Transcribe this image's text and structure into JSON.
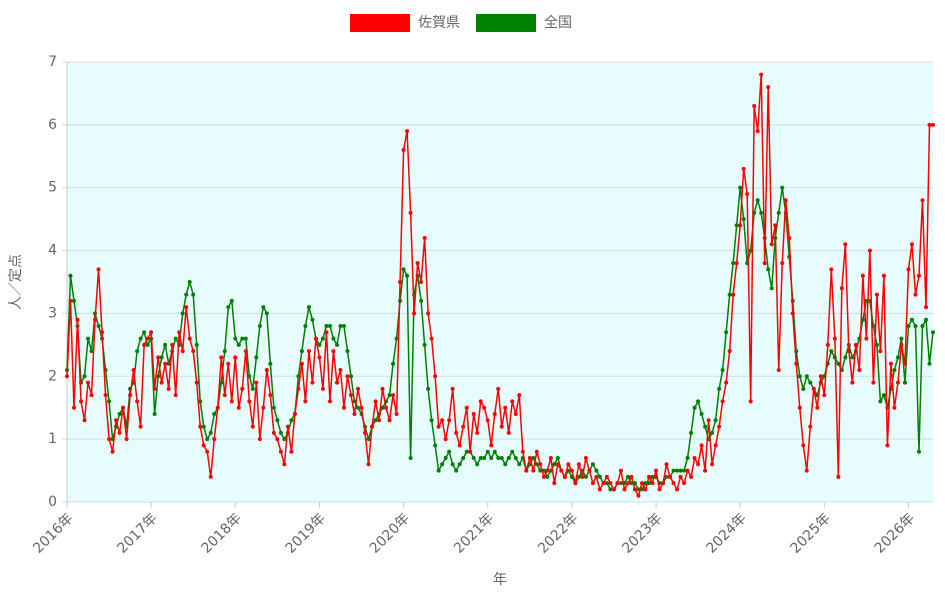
{
  "chart_data": {
    "type": "line",
    "x_label": "年",
    "y_label": "人／定点",
    "categories": [
      "2016年",
      null,
      null,
      null,
      null,
      null,
      null,
      null,
      null,
      null,
      null,
      null,
      null,
      null,
      null,
      null,
      null,
      null,
      null,
      null,
      null,
      null,
      null,
      null,
      "2017年",
      null,
      null,
      null,
      null,
      null,
      null,
      null,
      null,
      null,
      null,
      null,
      null,
      null,
      null,
      null,
      null,
      null,
      null,
      null,
      null,
      null,
      null,
      null,
      "2018年",
      null,
      null,
      null,
      null,
      null,
      null,
      null,
      null,
      null,
      null,
      null,
      null,
      null,
      null,
      null,
      null,
      null,
      null,
      null,
      null,
      null,
      null,
      null,
      "2019年",
      null,
      null,
      null,
      null,
      null,
      null,
      null,
      null,
      null,
      null,
      null,
      null,
      null,
      null,
      null,
      null,
      null,
      null,
      null,
      null,
      null,
      null,
      null,
      "2020年",
      null,
      null,
      null,
      null,
      null,
      null,
      null,
      null,
      null,
      null,
      null,
      null,
      null,
      null,
      null,
      null,
      null,
      null,
      null,
      null,
      null,
      null,
      null,
      "2021年",
      null,
      null,
      null,
      null,
      null,
      null,
      null,
      null,
      null,
      null,
      null,
      null,
      null,
      null,
      null,
      null,
      null,
      null,
      null,
      null,
      null,
      null,
      null,
      "2022年",
      null,
      null,
      null,
      null,
      null,
      null,
      null,
      null,
      null,
      null,
      null,
      null,
      null,
      null,
      null,
      null,
      null,
      null,
      null,
      null,
      null,
      null,
      null,
      "2023年",
      null,
      null,
      null,
      null,
      null,
      null,
      null,
      null,
      null,
      null,
      null,
      null,
      null,
      null,
      null,
      null,
      null,
      null,
      null,
      null,
      null,
      null,
      null,
      "2024年",
      null,
      null,
      null,
      null,
      null,
      null,
      null,
      null,
      null,
      null,
      null,
      null,
      null,
      null,
      null,
      null,
      null,
      null,
      null,
      null,
      null,
      null,
      null,
      "2025年",
      null,
      null,
      null,
      null,
      null,
      null,
      null,
      null,
      null,
      null,
      null,
      null,
      null,
      null,
      null,
      null,
      null,
      null,
      null,
      null,
      null,
      null,
      null,
      "2026年",
      null,
      null,
      null,
      null,
      null,
      null,
      null
    ],
    "series": [
      {
        "name": "佐賀県",
        "color": "#ff0000",
        "values": [
          2.0,
          3.2,
          1.5,
          2.9,
          1.6,
          1.3,
          1.9,
          1.7,
          2.9,
          3.7,
          2.7,
          1.7,
          1.0,
          0.8,
          1.3,
          1.1,
          1.5,
          1.0,
          1.7,
          2.1,
          1.6,
          1.2,
          2.5,
          2.6,
          2.7,
          1.8,
          2.3,
          1.9,
          2.2,
          1.8,
          2.5,
          1.7,
          2.7,
          2.4,
          3.1,
          2.6,
          2.4,
          1.9,
          1.2,
          0.9,
          0.8,
          0.4,
          1.0,
          1.5,
          2.3,
          1.7,
          2.2,
          1.6,
          2.3,
          1.5,
          1.8,
          2.4,
          1.6,
          1.2,
          1.9,
          1.0,
          1.5,
          2.1,
          1.7,
          1.1,
          1.0,
          0.8,
          0.6,
          1.2,
          0.8,
          1.4,
          1.8,
          2.2,
          1.6,
          2.4,
          1.9,
          2.6,
          2.3,
          1.8,
          2.7,
          1.6,
          2.4,
          1.9,
          2.1,
          1.5,
          2.0,
          1.7,
          1.4,
          1.8,
          1.5,
          1.1,
          0.6,
          1.2,
          1.6,
          1.3,
          1.8,
          1.5,
          1.3,
          1.7,
          1.4,
          3.5,
          5.6,
          5.9,
          4.6,
          3.0,
          3.8,
          3.5,
          4.2,
          3.0,
          2.6,
          2.0,
          1.2,
          1.3,
          1.0,
          1.3,
          1.8,
          1.1,
          0.9,
          1.2,
          1.5,
          0.8,
          1.4,
          1.1,
          1.6,
          1.5,
          1.3,
          0.9,
          1.4,
          1.8,
          1.2,
          1.5,
          1.1,
          1.6,
          1.4,
          1.7,
          0.8,
          0.5,
          0.7,
          0.5,
          0.8,
          0.6,
          0.4,
          0.5,
          0.7,
          0.3,
          0.6,
          0.5,
          0.4,
          0.6,
          0.5,
          0.3,
          0.6,
          0.4,
          0.7,
          0.5,
          0.3,
          0.4,
          0.2,
          0.3,
          0.4,
          0.3,
          0.2,
          0.3,
          0.5,
          0.2,
          0.3,
          0.4,
          0.2,
          0.1,
          0.3,
          0.2,
          0.4,
          0.3,
          0.5,
          0.2,
          0.3,
          0.6,
          0.4,
          0.3,
          0.2,
          0.4,
          0.3,
          0.5,
          0.4,
          0.7,
          0.6,
          0.9,
          0.5,
          1.3,
          0.6,
          0.9,
          1.2,
          1.6,
          1.9,
          2.4,
          3.3,
          3.8,
          4.4,
          5.3,
          4.9,
          1.6,
          6.3,
          5.9,
          6.8,
          3.8,
          6.6,
          4.1,
          4.4,
          2.1,
          3.8,
          4.8,
          4.2,
          3.0,
          2.2,
          1.5,
          0.9,
          0.5,
          1.2,
          1.8,
          1.5,
          2.0,
          1.7,
          2.5,
          3.7,
          2.6,
          0.4,
          3.4,
          4.1,
          2.4,
          1.9,
          2.5,
          2.1,
          3.6,
          2.6,
          4.0,
          1.9,
          3.3,
          2.4,
          3.6,
          0.9,
          2.2,
          1.5,
          1.9,
          2.5,
          2.2,
          3.7,
          4.1,
          3.3,
          3.6,
          4.8,
          3.1,
          6.0,
          6.0
        ]
      },
      {
        "name": "全国",
        "color": "#008000",
        "values": [
          2.1,
          3.6,
          3.2,
          2.8,
          1.9,
          2.0,
          2.6,
          2.4,
          3.0,
          2.8,
          2.6,
          2.1,
          1.6,
          1.0,
          1.2,
          1.4,
          1.5,
          1.2,
          1.8,
          1.9,
          2.4,
          2.6,
          2.7,
          2.5,
          2.6,
          1.4,
          2.0,
          2.3,
          2.5,
          2.2,
          2.4,
          2.6,
          2.5,
          3.0,
          3.3,
          3.5,
          3.3,
          2.5,
          1.6,
          1.2,
          1.0,
          1.1,
          1.4,
          1.5,
          1.9,
          2.4,
          3.1,
          3.2,
          2.6,
          2.5,
          2.6,
          2.6,
          2.0,
          1.8,
          2.3,
          2.8,
          3.1,
          3.0,
          2.2,
          1.5,
          1.3,
          1.1,
          1.0,
          1.1,
          1.3,
          1.4,
          2.0,
          2.4,
          2.8,
          3.1,
          2.9,
          2.6,
          2.5,
          2.6,
          2.8,
          2.8,
          2.6,
          2.5,
          2.8,
          2.8,
          2.4,
          2.0,
          1.6,
          1.5,
          1.4,
          1.2,
          1.0,
          1.2,
          1.3,
          1.4,
          1.5,
          1.6,
          1.7,
          2.2,
          2.6,
          3.2,
          3.7,
          3.6,
          0.7,
          3.3,
          3.6,
          3.2,
          2.5,
          1.8,
          1.3,
          0.9,
          0.5,
          0.6,
          0.7,
          0.8,
          0.6,
          0.5,
          0.6,
          0.7,
          0.8,
          0.8,
          0.7,
          0.6,
          0.7,
          0.7,
          0.8,
          0.7,
          0.8,
          0.7,
          0.7,
          0.6,
          0.7,
          0.8,
          0.7,
          0.6,
          0.7,
          0.5,
          0.6,
          0.7,
          0.6,
          0.5,
          0.5,
          0.4,
          0.5,
          0.6,
          0.7,
          0.5,
          0.4,
          0.5,
          0.4,
          0.3,
          0.4,
          0.5,
          0.4,
          0.5,
          0.6,
          0.5,
          0.4,
          0.3,
          0.3,
          0.2,
          0.2,
          0.3,
          0.3,
          0.3,
          0.4,
          0.3,
          0.3,
          0.2,
          0.2,
          0.3,
          0.3,
          0.4,
          0.4,
          0.3,
          0.3,
          0.4,
          0.4,
          0.5,
          0.5,
          0.5,
          0.5,
          0.7,
          1.1,
          1.5,
          1.6,
          1.4,
          1.2,
          1.0,
          1.1,
          1.3,
          1.8,
          2.1,
          2.7,
          3.3,
          3.8,
          4.4,
          5.0,
          4.5,
          3.8,
          4.0,
          4.6,
          4.8,
          4.6,
          4.2,
          3.7,
          3.4,
          4.2,
          4.6,
          5.0,
          4.6,
          3.9,
          3.2,
          2.4,
          2.0,
          1.8,
          2.0,
          1.9,
          1.8,
          1.7,
          1.9,
          2.0,
          2.2,
          2.4,
          2.3,
          2.2,
          2.1,
          2.3,
          2.5,
          2.3,
          2.4,
          2.6,
          2.9,
          3.2,
          3.2,
          2.8,
          2.5,
          1.6,
          1.7,
          1.5,
          1.8,
          2.1,
          2.3,
          2.6,
          1.9,
          2.8,
          2.9,
          2.8,
          0.8,
          2.8,
          2.9,
          2.2,
          2.7
        ]
      }
    ],
    "ylim": [
      0,
      7
    ],
    "yticks": [
      0,
      1,
      2,
      3,
      4,
      5,
      6,
      7
    ],
    "grid": true,
    "legend": "top"
  }
}
